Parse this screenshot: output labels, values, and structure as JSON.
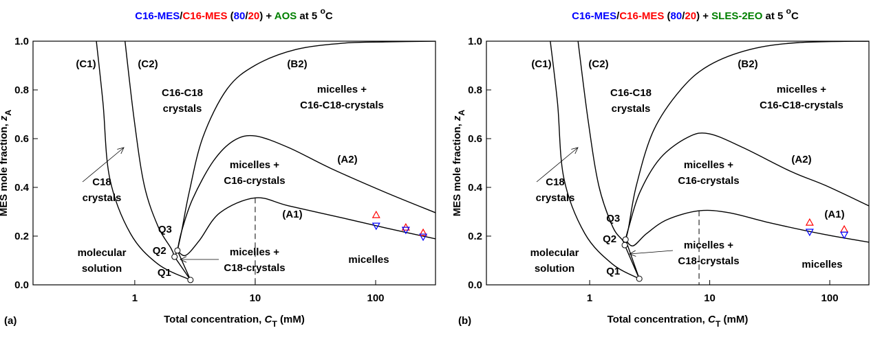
{
  "chart_data": [
    {
      "type": "phase-diagram",
      "panel": "(a)",
      "title_parts": [
        {
          "text": "C16-MES",
          "color": "#0000ff"
        },
        {
          "text": "/",
          "color": "#000000"
        },
        {
          "text": "C16-MES",
          "color": "#ff0000"
        },
        {
          "text": " (",
          "color": "#000000"
        },
        {
          "text": "80",
          "color": "#0000ff"
        },
        {
          "text": "/",
          "color": "#000000"
        },
        {
          "text": "20",
          "color": "#ff0000"
        },
        {
          "text": ") + ",
          "color": "#000000"
        },
        {
          "text": "AOS",
          "color": "#008000"
        },
        {
          "text": " at 5 ",
          "color": "#000000"
        },
        {
          "text": "o",
          "color": "#000000",
          "sup": true
        },
        {
          "text": "C",
          "color": "#000000"
        }
      ],
      "xlabel_parts": [
        {
          "text": "Total concentration, "
        },
        {
          "text": "C",
          "italic": true
        },
        {
          "text": "T",
          "sub": true
        },
        {
          "text": " (mM)"
        }
      ],
      "ylabel_parts": [
        {
          "text": "MES mole fraction, "
        },
        {
          "text": "z",
          "italic": true
        },
        {
          "text": "A",
          "sub": true
        }
      ],
      "xscale": "log",
      "xlim": [
        0.143,
        314
      ],
      "xticks": [
        1,
        10,
        100
      ],
      "ylim": [
        0,
        1
      ],
      "yticks": [
        {
          "value": 0,
          "label": "0.0"
        },
        0.2,
        0.4,
        0.6,
        0.8,
        {
          "value": 1,
          "label": "1.0"
        }
      ],
      "curves": [
        {
          "x": [
            0.48,
            0.545,
            0.62,
            0.92,
            1.56,
            2.9
          ],
          "values": [
            1.0,
            0.746,
            0.437,
            0.211,
            0.085,
            0.02
          ]
        },
        {
          "x": [
            0.83,
            0.99,
            1.2,
            1.56,
            2.0,
            2.14
          ],
          "values": [
            1.0,
            0.676,
            0.408,
            0.24,
            0.15,
            0.115
          ]
        },
        {
          "x": [
            2.14,
            2.9
          ],
          "values": [
            0.115,
            0.02
          ]
        },
        {
          "x": [
            2.26,
            2.9
          ],
          "values": [
            0.141,
            0.02
          ]
        },
        {
          "x": [
            2.26,
            2.14
          ],
          "values": [
            0.141,
            0.115
          ]
        },
        {
          "x": [
            2.26,
            2.65,
            3.45,
            5.1,
            10,
            19,
            54.8,
            120,
            314
          ],
          "values": [
            0.141,
            0.121,
            0.183,
            0.296,
            0.357,
            0.324,
            0.273,
            0.234,
            0.189
          ]
        },
        {
          "x": [
            2.26,
            2.45,
            3.02,
            4.48,
            6.64,
            10,
            19,
            42,
            120,
            314
          ],
          "values": [
            0.141,
            0.22,
            0.352,
            0.507,
            0.592,
            0.611,
            0.563,
            0.479,
            0.38,
            0.296
          ]
        },
        {
          "x": [
            2.26,
            2.45,
            2.83,
            3.68,
            5.83,
            10,
            21.8,
            54.8,
            120,
            314
          ],
          "values": [
            0.141,
            0.22,
            0.38,
            0.606,
            0.803,
            0.901,
            0.966,
            0.992,
            0.997,
            1.0
          ]
        },
        {
          "x": [
            10,
            10
          ],
          "values": [
            0.357,
            0
          ],
          "dash": true
        }
      ],
      "points": [
        {
          "color": "#ff0000",
          "marker": "triangle-up",
          "x": [
            101,
            178,
            248
          ],
          "values": [
            0.287,
            0.236,
            0.214
          ]
        },
        {
          "color": "#0000ff",
          "marker": "triangle-down",
          "x": [
            101,
            178,
            248
          ],
          "values": [
            0.242,
            0.225,
            0.197
          ]
        }
      ],
      "nodes": [
        {
          "label": "Q1",
          "x": 2.9,
          "y": 0.02
        },
        {
          "label": "Q2",
          "x": 2.14,
          "y": 0.115
        },
        {
          "label": "Q3",
          "x": 2.26,
          "y": 0.141
        }
      ],
      "annotations": [
        [
          "(C1)"
        ],
        [
          "(C2)"
        ],
        [
          "(B2)"
        ],
        [
          "C16-C18",
          "crystals"
        ],
        [
          "micelles +",
          "C16-C18-crystals"
        ],
        [
          "micelles +",
          "C16-crystals"
        ],
        [
          "(A2)"
        ],
        [
          "(A1)"
        ],
        [
          "C18",
          "crystals"
        ],
        [
          "molecular",
          "solution"
        ],
        [
          "micelles +",
          "C18-crystals"
        ],
        [
          "micelles"
        ]
      ]
    },
    {
      "type": "phase-diagram",
      "panel": "(b)",
      "title_parts": [
        {
          "text": "C16-MES",
          "color": "#0000ff"
        },
        {
          "text": "/",
          "color": "#000000"
        },
        {
          "text": "C16-MES",
          "color": "#ff0000"
        },
        {
          "text": " (",
          "color": "#000000"
        },
        {
          "text": "80",
          "color": "#0000ff"
        },
        {
          "text": "/",
          "color": "#000000"
        },
        {
          "text": "20",
          "color": "#ff0000"
        },
        {
          "text": ") + ",
          "color": "#000000"
        },
        {
          "text": "SLES-2EO",
          "color": "#008000"
        },
        {
          "text": " at 5 ",
          "color": "#000000"
        },
        {
          "text": "o",
          "color": "#000000",
          "sup": true
        },
        {
          "text": "C",
          "color": "#000000"
        }
      ],
      "xlabel_parts": [
        {
          "text": "Total concentration, "
        },
        {
          "text": "C",
          "italic": true
        },
        {
          "text": "T",
          "sub": true
        },
        {
          "text": " (mM)"
        }
      ],
      "ylabel_parts": [
        {
          "text": "MES mole fraction, "
        },
        {
          "text": "z",
          "italic": true
        },
        {
          "text": "A",
          "sub": true
        }
      ],
      "xscale": "log",
      "xlim": [
        0.138,
        212
      ],
      "xticks": [
        1,
        10,
        100
      ],
      "ylim": [
        0,
        1
      ],
      "yticks": [
        {
          "value": 0,
          "label": "0.0"
        },
        0.2,
        0.4,
        0.6,
        0.8,
        {
          "value": 1,
          "label": "1.0"
        }
      ],
      "curves": [
        {
          "x": [
            0.47,
            0.54,
            0.61,
            0.91,
            1.55,
            2.59
          ],
          "values": [
            1.0,
            0.746,
            0.437,
            0.211,
            0.085,
            0.025
          ]
        },
        {
          "x": [
            0.8,
            0.97,
            1.19,
            1.55,
            1.88,
            1.96
          ],
          "values": [
            1.0,
            0.676,
            0.408,
            0.24,
            0.183,
            0.163
          ]
        },
        {
          "x": [
            1.96,
            2.59
          ],
          "values": [
            0.163,
            0.025
          ]
        },
        {
          "x": [
            1.99,
            2.59
          ],
          "values": [
            0.186,
            0.025
          ]
        },
        {
          "x": [
            1.99,
            1.96
          ],
          "values": [
            0.186,
            0.163
          ]
        },
        {
          "x": [
            1.99,
            2.3,
            2.99,
            4.44,
            8.15,
            14.5,
            32,
            92,
            212
          ],
          "values": [
            0.186,
            0.16,
            0.211,
            0.268,
            0.304,
            0.296,
            0.254,
            0.206,
            0.175
          ]
        },
        {
          "x": [
            1.99,
            2.1,
            2.62,
            3.89,
            6.6,
            9.9,
            19,
            47.6,
            92,
            212
          ],
          "values": [
            0.186,
            0.23,
            0.38,
            0.521,
            0.606,
            0.62,
            0.563,
            0.465,
            0.408,
            0.324
          ]
        },
        {
          "x": [
            1.99,
            2.1,
            2.45,
            3.41,
            5.78,
            9.9,
            21.7,
            54.6,
            212
          ],
          "values": [
            0.186,
            0.23,
            0.408,
            0.634,
            0.803,
            0.901,
            0.966,
            0.994,
            1.0
          ]
        },
        {
          "x": [
            8.15,
            8.15
          ],
          "values": [
            0.304,
            0
          ],
          "dash": true
        }
      ],
      "points": [
        {
          "color": "#ff0000",
          "marker": "triangle-up",
          "x": [
            68,
            132,
            255
          ],
          "values": [
            0.256,
            0.228,
            0.194
          ]
        },
        {
          "color": "#0000ff",
          "marker": "triangle-down",
          "x": [
            68,
            132,
            255
          ],
          "values": [
            0.217,
            0.205,
            0.181
          ]
        }
      ],
      "nodes": [
        {
          "label": "Q1",
          "x": 2.59,
          "y": 0.025
        },
        {
          "label": "Q2",
          "x": 1.96,
          "y": 0.163
        },
        {
          "label": "Q3",
          "x": 1.99,
          "y": 0.186
        }
      ],
      "annotations": [
        [
          "(C1)"
        ],
        [
          "(C2)"
        ],
        [
          "(B2)"
        ],
        [
          "C16-C18",
          "crystals"
        ],
        [
          "micelles +",
          "C16-C18-crystals"
        ],
        [
          "micelles +",
          "C16-crystals"
        ],
        [
          "(A2)"
        ],
        [
          "(A1)"
        ],
        [
          "C18",
          "crystals"
        ],
        [
          "molecular",
          "solution"
        ],
        [
          "micelles +",
          "C18-crystals"
        ],
        [
          "micelles"
        ]
      ]
    }
  ]
}
